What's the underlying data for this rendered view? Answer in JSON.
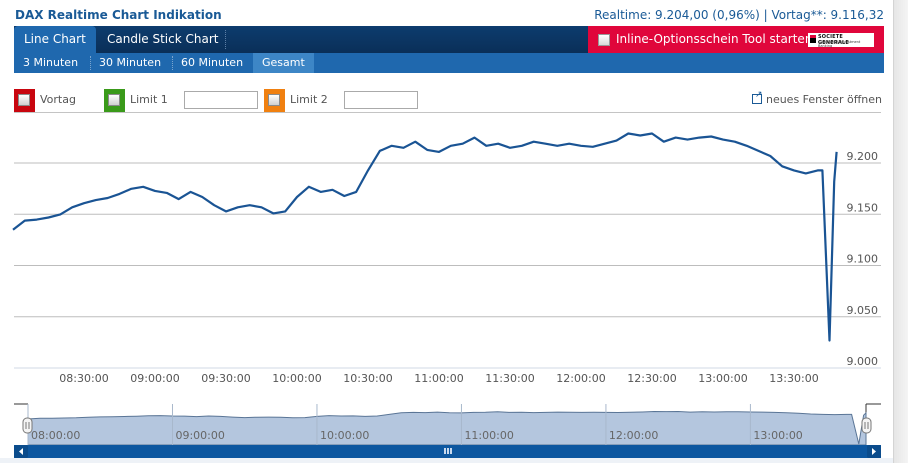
{
  "header": {
    "title": "DAX Realtime Chart Indikation",
    "quote": "Realtime: 9.204,00 (0,96%) | Vortag**: 9.116,32"
  },
  "tabs": [
    {
      "label": "Line Chart",
      "active": true
    },
    {
      "label": "Candle Stick Chart",
      "active": false
    }
  ],
  "promo": {
    "label": "Inline-Optionsschein Tool starten",
    "logo_line1": "SOCIETE GENERALE",
    "logo_line2": "Corporate & Investment Banking",
    "color": "#e0063b"
  },
  "intervals": [
    {
      "label": "3 Minuten",
      "active": false
    },
    {
      "label": "30 Minuten",
      "active": false
    },
    {
      "label": "60 Minuten",
      "active": false
    },
    {
      "label": "Gesamt",
      "active": true
    }
  ],
  "limits": [
    {
      "label": "Vortag",
      "color": "#c8060f",
      "has_input": false
    },
    {
      "label": "Limit 1",
      "color": "#3a9a1a",
      "has_input": true,
      "value": ""
    },
    {
      "label": "Limit 2",
      "color": "#f08010",
      "has_input": true,
      "value": ""
    }
  ],
  "new_window_label": "neues Fenster öffnen",
  "chart_data": {
    "type": "line",
    "title": "DAX Realtime Chart Indikation",
    "xlabel": "",
    "ylabel": "",
    "ylim": [
      9000,
      9230
    ],
    "yticks": [
      "9.000",
      "9.050",
      "9.100",
      "9.150",
      "9.200"
    ],
    "ytick_values": [
      9000,
      9050,
      9100,
      9150,
      9200
    ],
    "xticks": [
      "08:30:00",
      "09:00:00",
      "09:30:00",
      "10:00:00",
      "10:30:00",
      "11:00:00",
      "11:30:00",
      "12:00:00",
      "12:30:00",
      "13:00:00",
      "13:30:00"
    ],
    "grid": true,
    "line_color": "#1a5494",
    "series": [
      {
        "name": "DAX",
        "x": [
          "08:00",
          "08:05",
          "08:10",
          "08:15",
          "08:20",
          "08:25",
          "08:30",
          "08:35",
          "08:40",
          "08:45",
          "08:50",
          "08:55",
          "09:00",
          "09:05",
          "09:10",
          "09:15",
          "09:20",
          "09:25",
          "09:30",
          "09:35",
          "09:40",
          "09:45",
          "09:50",
          "09:55",
          "10:00",
          "10:05",
          "10:10",
          "10:15",
          "10:20",
          "10:25",
          "10:30",
          "10:35",
          "10:40",
          "10:45",
          "10:50",
          "10:55",
          "11:00",
          "11:05",
          "11:10",
          "11:15",
          "11:20",
          "11:25",
          "11:30",
          "11:35",
          "11:40",
          "11:45",
          "11:50",
          "11:55",
          "12:00",
          "12:05",
          "12:10",
          "12:15",
          "12:20",
          "12:25",
          "12:30",
          "12:35",
          "12:40",
          "12:45",
          "12:50",
          "12:55",
          "13:00",
          "13:05",
          "13:10",
          "13:15",
          "13:20",
          "13:25",
          "13:30",
          "13:35",
          "13:40",
          "13:42",
          "13:45",
          "13:47",
          "13:48"
        ],
        "values": [
          9128,
          9137,
          9138,
          9140,
          9143,
          9150,
          9154,
          9157,
          9159,
          9163,
          9168,
          9170,
          9166,
          9164,
          9158,
          9165,
          9160,
          9152,
          9146,
          9150,
          9152,
          9150,
          9144,
          9146,
          9160,
          9170,
          9165,
          9167,
          9161,
          9165,
          9186,
          9205,
          9210,
          9208,
          9214,
          9206,
          9204,
          9210,
          9212,
          9218,
          9210,
          9212,
          9208,
          9210,
          9214,
          9212,
          9210,
          9212,
          9210,
          9209,
          9212,
          9215,
          9222,
          9220,
          9222,
          9214,
          9218,
          9216,
          9218,
          9219,
          9216,
          9214,
          9210,
          9205,
          9200,
          9190,
          9186,
          9183,
          9186,
          9186,
          9020,
          9175,
          9204
        ]
      }
    ]
  },
  "navigator": {
    "xticks": [
      "08:00:00",
      "09:00:00",
      "10:00:00",
      "11:00:00",
      "12:00:00",
      "13:00:00"
    ],
    "fill_color": "#b4c6de",
    "scrollbar_color": "#0d57a0"
  }
}
